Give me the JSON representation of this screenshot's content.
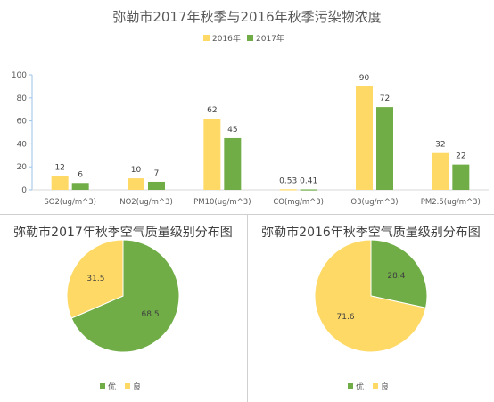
{
  "chart_data": [
    {
      "type": "bar",
      "title": "弥勒市2017年秋季与2016年秋季污染物浓度",
      "categories": [
        "SO2(ug/m^3)",
        "NO2(ug/m^3)",
        "PM10(ug/m^3)",
        "CO(mg/m^3)",
        "O3(ug/m^3)",
        "PM2.5(ug/m^3)"
      ],
      "series": [
        {
          "name": "2016年",
          "color": "#ffd966",
          "values": [
            12,
            10,
            62,
            0.53,
            90,
            32
          ]
        },
        {
          "name": "2017年",
          "color": "#70ad47",
          "values": [
            6,
            7,
            45,
            0.41,
            72,
            22
          ]
        }
      ],
      "ylim": [
        0,
        100
      ],
      "yticks": [
        0,
        20,
        40,
        60,
        80,
        100
      ],
      "legend": "top",
      "grid": false
    },
    {
      "type": "pie",
      "title": "弥勒市2017年秋季空气质量级别分布图",
      "slices": [
        {
          "label": "优",
          "value": 68.5,
          "color": "#70ad47"
        },
        {
          "label": "良",
          "value": 31.5,
          "color": "#ffd966"
        }
      ],
      "legend": "bottom"
    },
    {
      "type": "pie",
      "title": "弥勒市2016年秋季空气质量级别分布图",
      "slices": [
        {
          "label": "优",
          "value": 28.4,
          "color": "#70ad47"
        },
        {
          "label": "良",
          "value": 71.6,
          "color": "#ffd966"
        }
      ],
      "legend": "bottom"
    }
  ]
}
